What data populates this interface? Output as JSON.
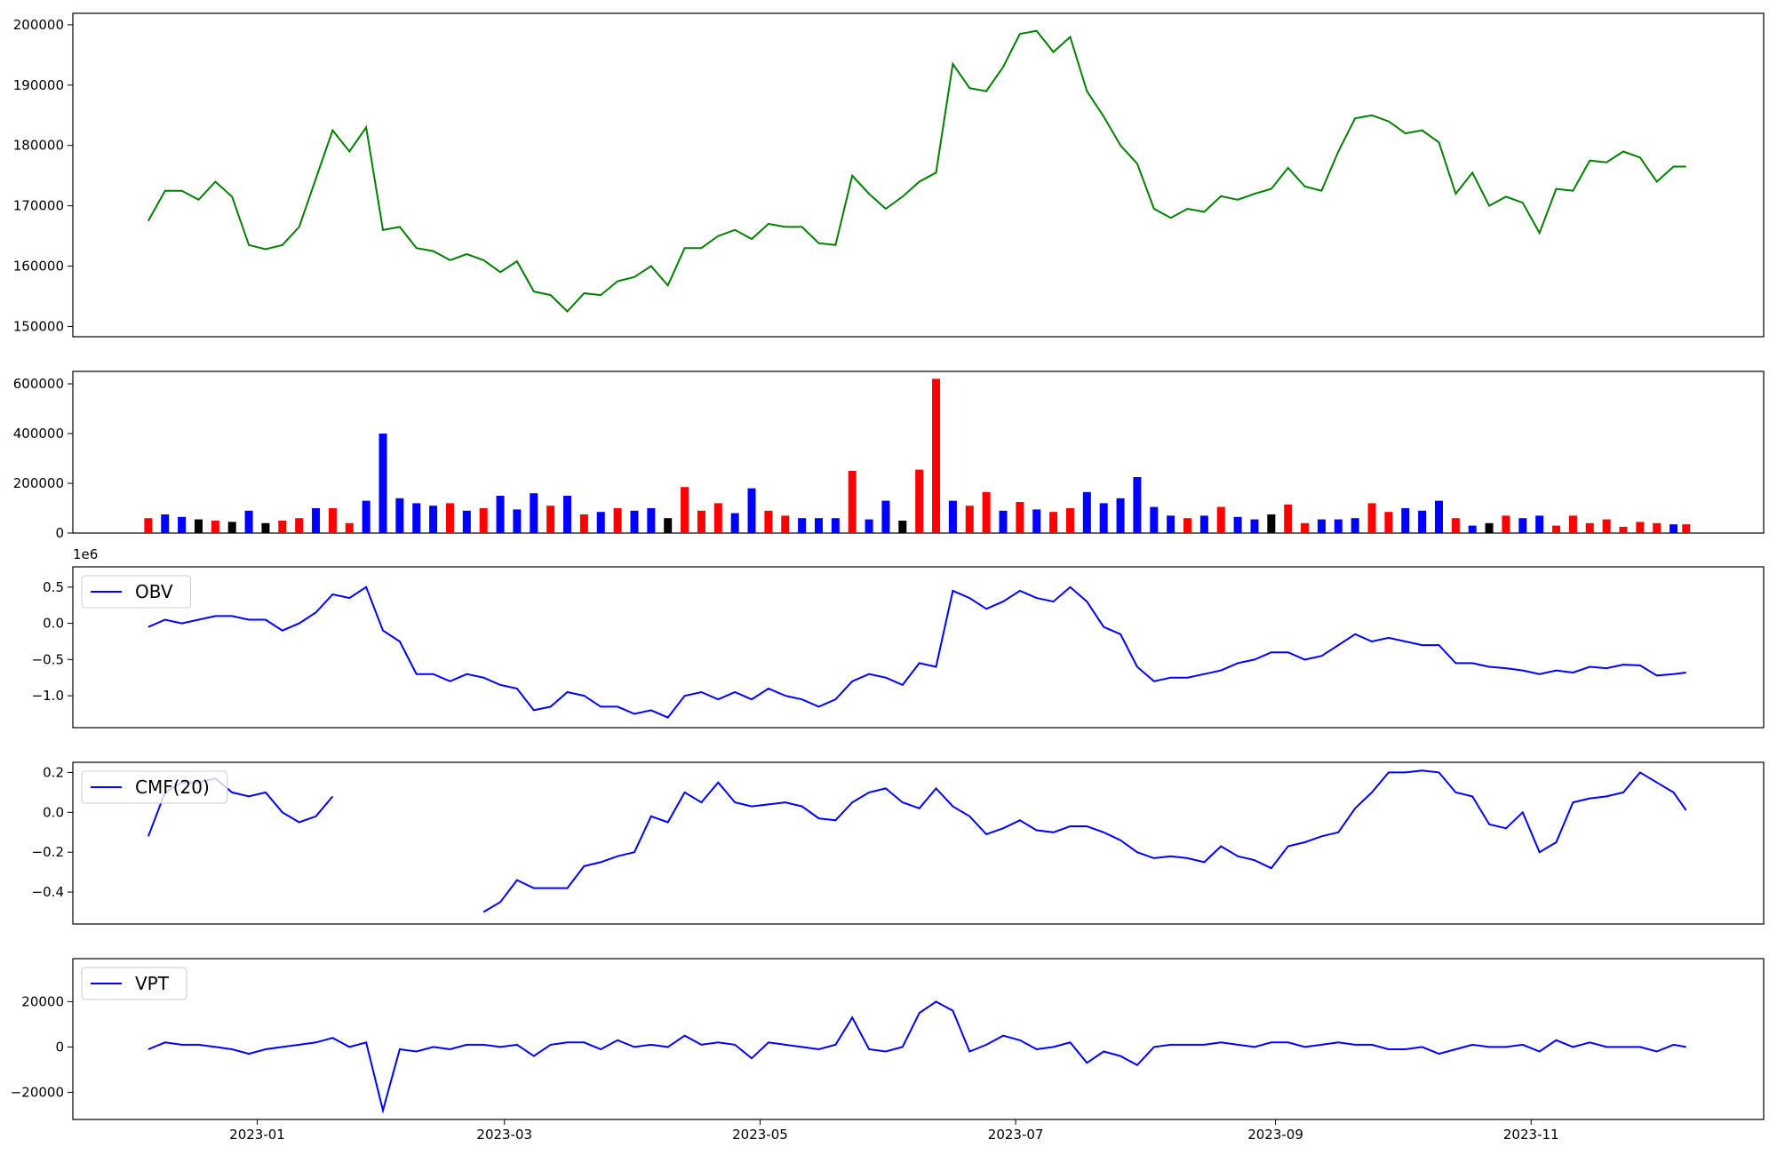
{
  "x": [
    -26,
    -22,
    -18,
    -14,
    -10,
    -6,
    -2,
    2,
    6,
    10,
    14,
    18,
    22,
    26,
    30,
    34,
    38,
    42,
    46,
    50,
    54,
    58,
    62,
    66,
    70,
    74,
    78,
    82,
    86,
    90,
    94,
    98,
    102,
    106,
    110,
    114,
    118,
    122,
    126,
    130,
    134,
    138,
    142,
    146,
    150,
    154,
    158,
    162,
    166,
    170,
    174,
    178,
    182,
    186,
    190,
    194,
    198,
    202,
    206,
    210,
    214,
    218,
    222,
    226,
    230,
    234,
    238,
    242,
    246,
    250,
    254,
    258,
    262,
    266,
    270,
    274,
    278,
    282,
    286,
    290,
    294,
    298,
    302,
    306,
    310,
    314,
    318,
    322,
    326,
    330,
    334,
    338,
    341
  ],
  "xlim": [
    -44,
    359.5
  ],
  "xticks": [
    {
      "value": 0,
      "label": "2023-01"
    },
    {
      "value": 59,
      "label": "2023-03"
    },
    {
      "value": 120,
      "label": "2023-05"
    },
    {
      "value": 181,
      "label": "2023-07"
    },
    {
      "value": 243,
      "label": "2023-09"
    },
    {
      "value": 304,
      "label": "2023-11"
    }
  ],
  "chart_data": [
    {
      "type": "line",
      "ylim": [
        148300,
        201900
      ],
      "yticks": [
        150000,
        160000,
        170000,
        180000,
        190000,
        200000
      ],
      "series": [
        {
          "color": "#008000",
          "values": [
            167500,
            172500,
            172500,
            171000,
            174000,
            171500,
            163500,
            162800,
            163500,
            166500,
            174500,
            182500,
            179000,
            183000,
            166000,
            166500,
            163000,
            162500,
            161000,
            162000,
            161000,
            159000,
            160800,
            155800,
            155200,
            152500,
            155500,
            155200,
            157500,
            158200,
            160000,
            156800,
            163000,
            163000,
            165000,
            166000,
            164500,
            167000,
            166500,
            166500,
            163800,
            163500,
            175000,
            172000,
            169500,
            171500,
            174000,
            175500,
            193500,
            189500,
            189000,
            193000,
            198500,
            199000,
            195500,
            198000,
            189000,
            184800,
            180000,
            177000,
            169500,
            168000,
            169500,
            169000,
            171600,
            171000,
            172000,
            172800,
            176300,
            173200,
            172500,
            179000,
            184500,
            185000,
            184000,
            182000,
            182500,
            180500,
            172000,
            175500,
            170000,
            171500,
            170500,
            165500,
            172800,
            172500,
            177500,
            177200,
            179000,
            178000,
            174000,
            176500,
            176500
          ]
        }
      ]
    },
    {
      "type": "bar",
      "ylim": [
        0,
        650000
      ],
      "yticks": [
        0,
        200000,
        400000,
        600000
      ],
      "values": [
        60000,
        75000,
        65000,
        55000,
        50000,
        45000,
        90000,
        40000,
        50000,
        60000,
        100000,
        100000,
        40000,
        130000,
        400000,
        140000,
        120000,
        110000,
        120000,
        90000,
        100000,
        150000,
        95000,
        160000,
        110000,
        150000,
        75000,
        85000,
        100000,
        90000,
        100000,
        60000,
        185000,
        90000,
        120000,
        80000,
        180000,
        90000,
        70000,
        60000,
        60000,
        60000,
        250000,
        55000,
        130000,
        50000,
        255000,
        620000,
        130000,
        110000,
        165000,
        90000,
        125000,
        95000,
        85000,
        100000,
        165000,
        120000,
        140000,
        225000,
        105000,
        70000,
        60000,
        70000,
        105000,
        65000,
        55000,
        75000,
        115000,
        40000,
        55000,
        55000,
        60000,
        120000,
        85000,
        100000,
        90000,
        130000,
        60000,
        30000,
        40000,
        70000,
        60000,
        70000,
        30000,
        70000,
        40000,
        55000,
        25000,
        45000,
        40000,
        35000,
        35000
      ],
      "colors": [
        "#ff0000",
        "#0000ff",
        "#0000ff",
        "#000000",
        "#ff0000",
        "#000000",
        "#0000ff",
        "#000000",
        "#ff0000",
        "#ff0000",
        "#0000ff",
        "#ff0000",
        "#ff0000",
        "#0000ff",
        "#0000ff",
        "#0000ff",
        "#0000ff",
        "#0000ff",
        "#ff0000",
        "#0000ff",
        "#ff0000",
        "#0000ff",
        "#0000ff",
        "#0000ff",
        "#ff0000",
        "#0000ff",
        "#ff0000",
        "#0000ff",
        "#ff0000",
        "#0000ff",
        "#0000ff",
        "#000000",
        "#ff0000",
        "#ff0000",
        "#ff0000",
        "#0000ff",
        "#0000ff",
        "#ff0000",
        "#ff0000",
        "#0000ff",
        "#0000ff",
        "#0000ff",
        "#ff0000",
        "#0000ff",
        "#0000ff",
        "#000000",
        "#ff0000",
        "#ff0000",
        "#0000ff",
        "#ff0000",
        "#ff0000",
        "#0000ff",
        "#ff0000",
        "#0000ff",
        "#ff0000",
        "#ff0000",
        "#0000ff",
        "#0000ff",
        "#0000ff",
        "#0000ff",
        "#0000ff",
        "#0000ff",
        "#ff0000",
        "#0000ff",
        "#ff0000",
        "#0000ff",
        "#0000ff",
        "#000000",
        "#ff0000",
        "#ff0000",
        "#0000ff",
        "#0000ff",
        "#0000ff",
        "#ff0000",
        "#ff0000",
        "#0000ff",
        "#0000ff",
        "#0000ff",
        "#ff0000",
        "#0000ff",
        "#000000",
        "#ff0000",
        "#0000ff",
        "#0000ff",
        "#ff0000",
        "#ff0000",
        "#ff0000",
        "#ff0000",
        "#ff0000",
        "#ff0000",
        "#ff0000",
        "#0000ff",
        "#ff0000"
      ]
    },
    {
      "type": "line",
      "offset_label": "1e6",
      "legend": "upper left",
      "ylim": [
        -1.44,
        0.78
      ],
      "yticks": [
        {
          "value": -1.0,
          "label": "−1.0"
        },
        {
          "value": -0.5,
          "label": "−0.5"
        },
        {
          "value": 0,
          "label": "0.0"
        },
        0.5
      ],
      "series": [
        {
          "name": "OBV",
          "color": "#0000ff",
          "values": [
            -0.05,
            0.05,
            0.0,
            0.05,
            0.1,
            0.1,
            0.05,
            0.05,
            -0.1,
            0.0,
            0.15,
            0.4,
            0.35,
            0.5,
            -0.1,
            -0.25,
            -0.7,
            -0.7,
            -0.8,
            -0.7,
            -0.75,
            -0.85,
            -0.9,
            -1.2,
            -1.15,
            -0.95,
            -1.0,
            -1.15,
            -1.15,
            -1.25,
            -1.2,
            -1.3,
            -1.0,
            -0.95,
            -1.05,
            -0.95,
            -1.05,
            -0.9,
            -1.0,
            -1.05,
            -1.15,
            -1.05,
            -0.8,
            -0.7,
            -0.75,
            -0.85,
            -0.55,
            -0.6,
            0.45,
            0.35,
            0.2,
            0.3,
            0.45,
            0.35,
            0.3,
            0.5,
            0.3,
            -0.05,
            -0.15,
            -0.6,
            -0.8,
            -0.75,
            -0.75,
            -0.7,
            -0.65,
            -0.55,
            -0.5,
            -0.4,
            -0.4,
            -0.5,
            -0.45,
            -0.3,
            -0.15,
            -0.25,
            -0.2,
            -0.25,
            -0.3,
            -0.3,
            -0.55,
            -0.55,
            -0.6,
            -0.62,
            -0.65,
            -0.7,
            -0.65,
            -0.68,
            -0.6,
            -0.62,
            -0.57,
            -0.58,
            -0.72,
            -0.7,
            -0.68
          ]
        }
      ]
    },
    {
      "type": "line",
      "legend": "upper left",
      "ylim": [
        -0.56,
        0.251
      ],
      "yticks": [
        {
          "value": -0.4,
          "label": "−0.4"
        },
        {
          "value": -0.2,
          "label": "−0.2"
        },
        {
          "value": 0,
          "label": "0.0"
        },
        0.2
      ],
      "series": [
        {
          "name": "CMF(20)",
          "color": "#0000ff",
          "values": [
            -0.12,
            0.1,
            0.15,
            0.15,
            0.17,
            0.1,
            0.08,
            0.1,
            0.0,
            -0.05,
            -0.02,
            0.08,
            null,
            null,
            null,
            null,
            null,
            null,
            null,
            null,
            -0.5,
            -0.45,
            -0.34,
            -0.38,
            -0.38,
            -0.38,
            -0.27,
            -0.25,
            -0.22,
            -0.2,
            -0.02,
            -0.05,
            0.1,
            0.05,
            0.15,
            0.05,
            0.03,
            0.04,
            0.05,
            0.03,
            -0.03,
            -0.04,
            0.05,
            0.1,
            0.12,
            0.05,
            0.02,
            0.12,
            0.03,
            -0.02,
            -0.11,
            -0.08,
            -0.04,
            -0.09,
            -0.1,
            -0.07,
            -0.07,
            -0.1,
            -0.14,
            -0.2,
            -0.23,
            -0.22,
            -0.23,
            -0.25,
            -0.17,
            -0.22,
            -0.24,
            -0.28,
            -0.17,
            -0.15,
            -0.12,
            -0.1,
            0.02,
            0.1,
            0.2,
            0.2,
            0.21,
            0.2,
            0.1,
            0.08,
            -0.06,
            -0.08,
            0.0,
            -0.2,
            -0.15,
            0.05,
            0.07,
            0.08,
            0.1,
            0.2,
            0.15,
            0.1,
            0.01
          ]
        }
      ]
    },
    {
      "type": "line",
      "legend": "upper left",
      "ylim": [
        -32000,
        39000
      ],
      "yticks": [
        {
          "value": -20000,
          "label": "−20000"
        },
        0,
        20000
      ],
      "series": [
        {
          "name": "VPT",
          "color": "#0000ff",
          "values": [
            -1000,
            2000,
            1000,
            1000,
            0,
            -1000,
            -3000,
            -1000,
            0,
            1000,
            2000,
            4000,
            0,
            2000,
            -28000,
            -1000,
            -2000,
            0,
            -1000,
            1000,
            1000,
            0,
            1000,
            -4000,
            1000,
            2000,
            2000,
            -1000,
            3000,
            0,
            1000,
            0,
            5000,
            1000,
            2000,
            1000,
            -5000,
            2000,
            1000,
            0,
            -1000,
            1000,
            13000,
            -1000,
            -2000,
            0,
            15000,
            20000,
            16000,
            -2000,
            1000,
            5000,
            3000,
            -1000,
            0,
            2000,
            -7000,
            -2000,
            -4000,
            -8000,
            0,
            1000,
            1000,
            1000,
            2000,
            1000,
            0,
            2000,
            2000,
            0,
            1000,
            2000,
            1000,
            1000,
            -1000,
            -1000,
            0,
            -3000,
            -1000,
            1000,
            0,
            0,
            1000,
            -2000,
            3000,
            0,
            2000,
            0,
            0,
            0,
            -2000,
            1000,
            0
          ]
        }
      ]
    }
  ]
}
